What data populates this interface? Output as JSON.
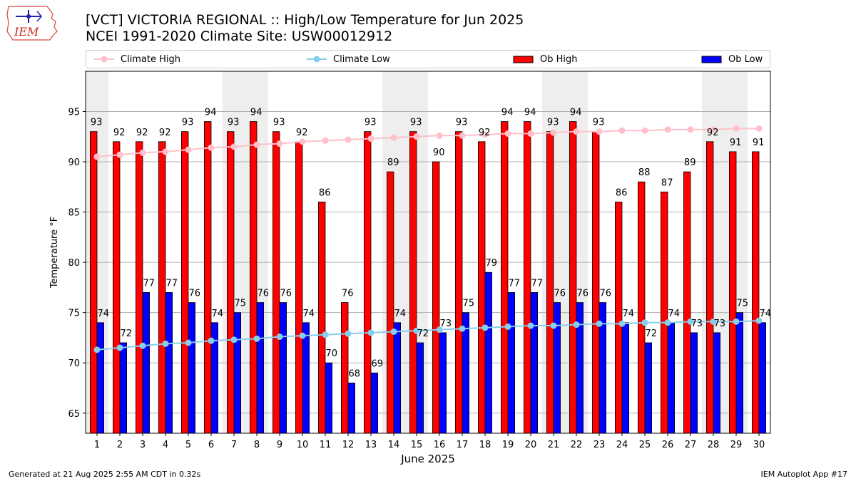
{
  "header": {
    "logo_text": "IEM",
    "title_line1": "[VCT] VICTORIA REGIONAL :: High/Low Temperature for Jun 2025",
    "title_line2": "NCEI 1991-2020 Climate Site: USW00012912"
  },
  "footer": {
    "generated": "Generated at 21 Aug 2025 2:55 AM CDT in 0.32s",
    "app": "IEM Autoplot App #17"
  },
  "colors": {
    "ob_high": "#ff0000",
    "ob_low": "#0000ff",
    "climate_high": "#ffc0cb",
    "climate_low": "#87ceeb",
    "weekend_shade": "#eeeeee"
  },
  "chart_data": {
    "type": "bar",
    "title": "[VCT] VICTORIA REGIONAL :: High/Low Temperature for Jun 2025",
    "subtitle": "NCEI 1991-2020 Climate Site: USW00012912",
    "xlabel": "June 2025",
    "ylabel": "Temperature °F",
    "ylim": [
      63,
      99
    ],
    "yticks": [
      65,
      70,
      75,
      80,
      85,
      90,
      95
    ],
    "grid": true,
    "legend_position": "top",
    "categories": [
      "1",
      "2",
      "3",
      "4",
      "5",
      "6",
      "7",
      "8",
      "9",
      "10",
      "11",
      "12",
      "13",
      "14",
      "15",
      "16",
      "17",
      "18",
      "19",
      "20",
      "21",
      "22",
      "23",
      "24",
      "25",
      "26",
      "27",
      "28",
      "29",
      "30"
    ],
    "weekend_days": [
      1,
      7,
      8,
      14,
      15,
      21,
      22,
      28,
      29
    ],
    "series": [
      {
        "name": "Ob High",
        "type": "bar",
        "values": [
          93,
          92,
          92,
          92,
          93,
          94,
          93,
          94,
          93,
          92,
          86,
          76,
          93,
          89,
          93,
          90,
          93,
          92,
          94,
          94,
          93,
          94,
          93,
          86,
          88,
          87,
          89,
          92,
          91,
          91
        ]
      },
      {
        "name": "Ob Low",
        "type": "bar",
        "values": [
          74,
          72,
          77,
          77,
          76,
          74,
          75,
          76,
          76,
          74,
          70,
          68,
          69,
          74,
          72,
          73,
          75,
          79,
          77,
          77,
          76,
          76,
          76,
          74,
          72,
          74,
          73,
          73,
          75,
          74
        ]
      },
      {
        "name": "Climate High",
        "type": "line",
        "values": [
          90.5,
          90.7,
          90.9,
          91.0,
          91.2,
          91.4,
          91.5,
          91.7,
          91.8,
          92.0,
          92.1,
          92.2,
          92.3,
          92.4,
          92.5,
          92.6,
          92.6,
          92.7,
          92.8,
          92.8,
          92.9,
          93.0,
          93.0,
          93.1,
          93.1,
          93.2,
          93.2,
          93.2,
          93.3,
          93.3
        ]
      },
      {
        "name": "Climate Low",
        "type": "line",
        "values": [
          71.3,
          71.5,
          71.7,
          71.9,
          72.0,
          72.2,
          72.3,
          72.4,
          72.6,
          72.7,
          72.8,
          72.9,
          73.0,
          73.1,
          73.2,
          73.3,
          73.4,
          73.5,
          73.6,
          73.7,
          73.7,
          73.8,
          73.9,
          73.9,
          74.0,
          74.0,
          74.1,
          74.1,
          74.1,
          74.2
        ]
      }
    ]
  }
}
